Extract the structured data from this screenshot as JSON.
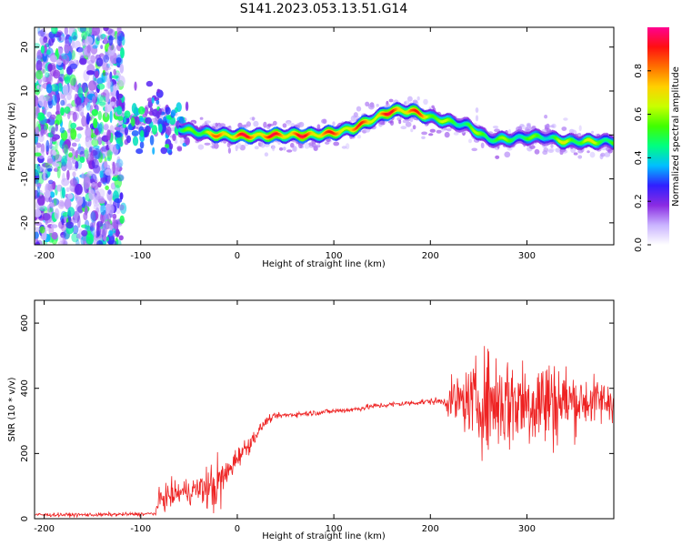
{
  "title": "S141.2023.053.13.51.G14",
  "chart_data": [
    {
      "type": "heatmap",
      "xlabel": "Height of straight line (km)",
      "ylabel": "Frequency (Hz)",
      "xlim": [
        -210,
        390
      ],
      "ylim": [
        -25,
        24.5
      ],
      "xticks": [
        -200,
        -100,
        0,
        100,
        200,
        300
      ],
      "yticks": [
        -20,
        -10,
        0,
        10,
        20
      ],
      "colorbar": {
        "label": "Normalized spectral amplitude",
        "range": [
          0,
          1
        ],
        "ticks": [
          "0.0",
          "0.2",
          "0.4",
          "0.6",
          "0.8"
        ],
        "colors": [
          "#ffffff",
          "#c9b3ff",
          "#8a2be2",
          "#3020ff",
          "#00bfff",
          "#00ff80",
          "#40ff00",
          "#c8ff00",
          "#ffd000",
          "#ff7000",
          "#ff1010",
          "#ff0090"
        ]
      },
      "ridge": {
        "x": [
          -120,
          -100,
          -80,
          -60,
          -40,
          -20,
          0,
          20,
          40,
          60,
          80,
          100,
          120,
          140,
          160,
          180,
          200,
          220,
          240,
          260,
          280,
          300,
          320,
          340,
          360,
          380,
          390
        ],
        "freq": [
          2.0,
          3.0,
          3.5,
          1.5,
          0.5,
          0.0,
          -0.2,
          -0.2,
          -0.1,
          0.0,
          0.0,
          0.5,
          1.5,
          3.5,
          5.5,
          5.5,
          4.0,
          3.0,
          2.0,
          -1.0,
          -1.0,
          -0.5,
          -0.5,
          -1.5,
          -1.5,
          -1.5,
          -1.5
        ],
        "peak_amplitude": [
          0.3,
          0.35,
          0.4,
          0.5,
          0.7,
          0.85,
          0.95,
          0.95,
          0.95,
          0.95,
          0.95,
          0.9,
          0.9,
          0.9,
          0.95,
          0.95,
          0.8,
          0.6,
          0.6,
          0.65,
          0.6,
          0.6,
          0.55,
          0.7,
          0.7,
          0.65,
          0.65
        ]
      }
    },
    {
      "type": "line",
      "xlabel": "Height of straight line (km)",
      "ylabel": "SNR (10 * v/v)",
      "xlim": [
        -210,
        390
      ],
      "ylim": [
        0,
        670
      ],
      "xticks": [
        -200,
        -100,
        0,
        100,
        200,
        300
      ],
      "yticks": [
        0,
        200,
        400,
        600
      ],
      "series": [
        {
          "color": "#ee2222",
          "x": [
            -210,
            -150,
            -100,
            -85,
            -80,
            -60,
            -40,
            -20,
            -10,
            0,
            10,
            20,
            30,
            40,
            60,
            80,
            100,
            120,
            140,
            160,
            180,
            200,
            215,
            220,
            240,
            260,
            280,
            300,
            320,
            340,
            360,
            380,
            390
          ],
          "mean": [
            12,
            12,
            14,
            16,
            60,
            80,
            90,
            100,
            140,
            190,
            220,
            260,
            300,
            315,
            320,
            325,
            330,
            335,
            345,
            350,
            355,
            360,
            360,
            360,
            360,
            360,
            360,
            360,
            360,
            360,
            360,
            360,
            360
          ],
          "spread": [
            8,
            8,
            8,
            8,
            55,
            55,
            60,
            140,
            60,
            45,
            45,
            25,
            18,
            12,
            12,
            12,
            12,
            12,
            12,
            12,
            12,
            14,
            18,
            90,
            140,
            230,
            220,
            200,
            230,
            160,
            110,
            100,
            80
          ]
        }
      ]
    }
  ]
}
